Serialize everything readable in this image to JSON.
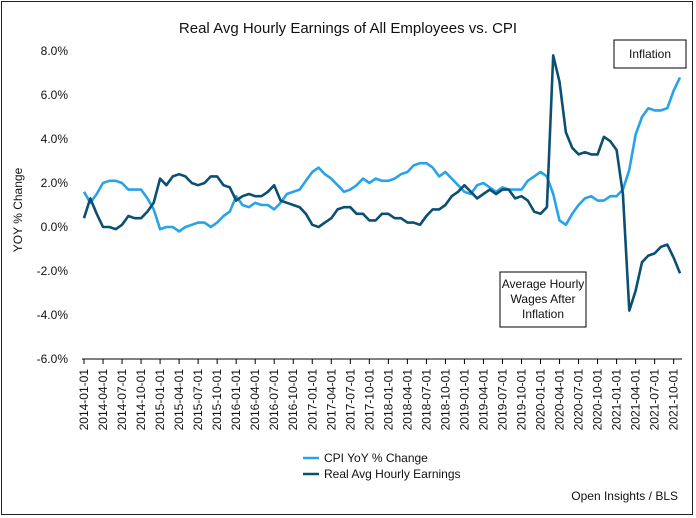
{
  "chart_data": {
    "type": "line",
    "title": "Real Avg Hourly Earnings of All Employees vs. CPI",
    "ylabel": "YOY % Change",
    "xlabel": "",
    "ylim": [
      -6.0,
      8.0
    ],
    "yticks": [
      "-6.0%",
      "-4.0%",
      "-2.0%",
      "0.0%",
      "2.0%",
      "4.0%",
      "6.0%",
      "8.0%"
    ],
    "grid": false,
    "legend_position": "bottom-center",
    "x_tick_labels": [
      "2014-01-01",
      "2014-04-01",
      "2014-07-01",
      "2014-10-01",
      "2015-01-01",
      "2015-04-01",
      "2015-07-01",
      "2015-10-01",
      "2016-01-01",
      "2016-04-01",
      "2016-07-01",
      "2016-10-01",
      "2017-01-01",
      "2017-04-01",
      "2017-07-01",
      "2017-10-01",
      "2018-01-01",
      "2018-04-01",
      "2018-07-01",
      "2018-10-01",
      "2019-01-01",
      "2019-04-01",
      "2019-07-01",
      "2019-10-01",
      "2020-01-01",
      "2020-04-01",
      "2020-07-01",
      "2020-10-01",
      "2021-01-01",
      "2021-04-01",
      "2021-07-01",
      "2021-10-01"
    ],
    "series": [
      {
        "name": "CPI YoY % Change",
        "color": "#29a3e8",
        "values": [
          1.6,
          1.1,
          1.5,
          2.0,
          2.1,
          2.1,
          2.0,
          1.7,
          1.7,
          1.7,
          1.3,
          0.8,
          -0.1,
          0.0,
          0.0,
          -0.2,
          0.0,
          0.1,
          0.2,
          0.2,
          0.0,
          0.2,
          0.5,
          0.7,
          1.4,
          1.0,
          0.9,
          1.1,
          1.0,
          1.0,
          0.8,
          1.1,
          1.5,
          1.6,
          1.7,
          2.1,
          2.5,
          2.7,
          2.4,
          2.2,
          1.9,
          1.6,
          1.7,
          1.9,
          2.2,
          2.0,
          2.2,
          2.1,
          2.1,
          2.2,
          2.4,
          2.5,
          2.8,
          2.9,
          2.9,
          2.7,
          2.3,
          2.5,
          2.2,
          1.9,
          1.6,
          1.5,
          1.9,
          2.0,
          1.8,
          1.6,
          1.8,
          1.7,
          1.7,
          1.7,
          2.1,
          2.3,
          2.5,
          2.3,
          1.5,
          0.3,
          0.1,
          0.6,
          1.0,
          1.3,
          1.4,
          1.2,
          1.2,
          1.4,
          1.4,
          1.7,
          2.6,
          4.2,
          5.0,
          5.4,
          5.3,
          5.3,
          5.4,
          6.2,
          6.8
        ],
        "unit": "%"
      },
      {
        "name": "Real Avg Hourly Earnings",
        "color": "#0b4f72",
        "values": [
          0.4,
          1.3,
          0.6,
          0.0,
          0.0,
          -0.1,
          0.1,
          0.5,
          0.4,
          0.4,
          0.7,
          1.1,
          2.2,
          1.9,
          2.3,
          2.4,
          2.3,
          2.0,
          1.9,
          2.0,
          2.3,
          2.3,
          1.9,
          1.8,
          1.2,
          1.4,
          1.5,
          1.4,
          1.4,
          1.6,
          1.9,
          1.2,
          1.1,
          1.0,
          0.9,
          0.6,
          0.1,
          0.0,
          0.2,
          0.4,
          0.8,
          0.9,
          0.9,
          0.6,
          0.6,
          0.3,
          0.3,
          0.6,
          0.6,
          0.4,
          0.4,
          0.2,
          0.2,
          0.1,
          0.5,
          0.8,
          0.8,
          1.0,
          1.4,
          1.6,
          1.9,
          1.6,
          1.3,
          1.5,
          1.7,
          1.5,
          1.7,
          1.7,
          1.3,
          1.4,
          1.2,
          0.7,
          0.6,
          0.9,
          7.8,
          6.6,
          4.3,
          3.6,
          3.3,
          3.4,
          3.3,
          3.3,
          4.1,
          3.9,
          3.5,
          1.5,
          -3.8,
          -2.9,
          -1.6,
          -1.3,
          -1.2,
          -0.9,
          -0.8,
          -1.4,
          -2.1
        ],
        "unit": "%"
      }
    ],
    "annotations": [
      {
        "text": "Inflation",
        "boxed": true
      },
      {
        "text_lines": [
          "Average Hourly",
          "Wages After",
          "Inflation"
        ],
        "boxed": true
      }
    ],
    "source": "Open Insights / BLS"
  }
}
